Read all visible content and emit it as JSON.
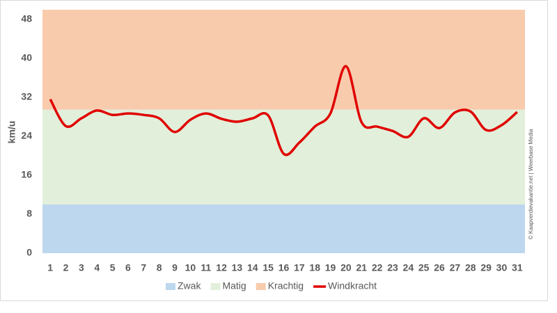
{
  "chart_data": {
    "type": "line",
    "y_label": "km/u",
    "credit": "© Kaapverdievakantie.net | Weerbase Media",
    "categories": [
      "1",
      "2",
      "3",
      "4",
      "5",
      "6",
      "7",
      "8",
      "9",
      "10",
      "11",
      "12",
      "13",
      "14",
      "15",
      "16",
      "17",
      "18",
      "19",
      "20",
      "21",
      "22",
      "23",
      "24",
      "25",
      "26",
      "27",
      "28",
      "29",
      "30",
      "31"
    ],
    "bands": [
      {
        "name": "Zwak",
        "color": "#bdd7ee",
        "range": [
          0,
          10
        ]
      },
      {
        "name": "Matig",
        "color": "#e2efda",
        "range": [
          10,
          29.5
        ]
      },
      {
        "name": "Krachtig",
        "color": "#f8cbad",
        "range": [
          29.5,
          50
        ]
      }
    ],
    "series": [
      {
        "name": "Windkracht",
        "color": "#e00000",
        "values": [
          31.6,
          26.1,
          27.7,
          29.3,
          28.4,
          28.7,
          28.4,
          27.7,
          24.9,
          27.4,
          28.7,
          27.6,
          27.0,
          27.7,
          28.3,
          20.4,
          22.7,
          26.0,
          28.7,
          38.4,
          26.9,
          26.0,
          25.1,
          23.9,
          27.7,
          25.7,
          28.9,
          29.1,
          25.3,
          26.3,
          29.0
        ]
      }
    ],
    "ylim": [
      0,
      50
    ],
    "yticks": [
      0,
      8,
      16,
      24,
      32,
      40,
      48
    ]
  }
}
